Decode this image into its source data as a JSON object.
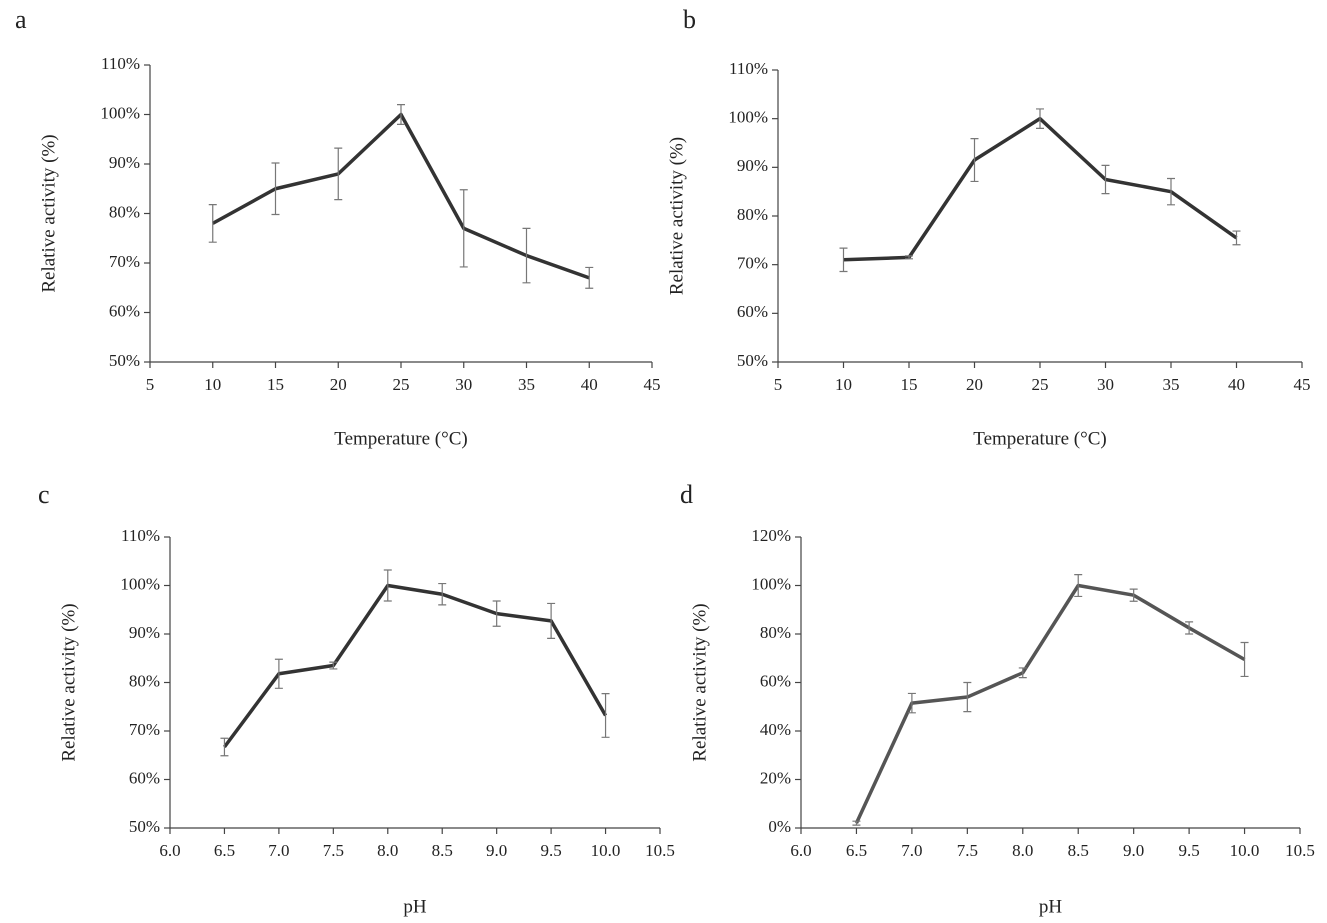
{
  "chart_data": [
    {
      "type": "line",
      "panel": "a",
      "x_label": "Temperature (°C)",
      "y_label": "Relative activity (%)",
      "color": "#333333",
      "x": [
        10,
        15,
        20,
        25,
        30,
        35,
        40
      ],
      "values": [
        78,
        85,
        88,
        100,
        77,
        71.5,
        67
      ],
      "errors": [
        3.8,
        5.2,
        5.2,
        2,
        7.8,
        5.5,
        2.1
      ],
      "xlim": [
        5,
        45
      ],
      "xticks": [
        5,
        10,
        15,
        20,
        25,
        30,
        35,
        40,
        45
      ],
      "ylim": [
        50,
        110
      ],
      "yticks": [
        {
          "value": 50,
          "label": "50%"
        },
        {
          "value": 60,
          "label": "60%"
        },
        {
          "value": 70,
          "label": "70%"
        },
        {
          "value": 80,
          "label": "80%"
        },
        {
          "value": 90,
          "label": "90%"
        },
        {
          "value": 100,
          "label": "100%"
        },
        {
          "value": 110,
          "label": "110%"
        }
      ]
    },
    {
      "type": "line",
      "panel": "b",
      "x_label": "Temperature (°C)",
      "y_label": "Relative activity (%)",
      "color": "#333333",
      "x": [
        10,
        15,
        20,
        25,
        30,
        35,
        40
      ],
      "values": [
        71,
        71.5,
        91.5,
        100,
        87.5,
        85,
        75.5
      ],
      "errors": [
        2.4,
        0.3,
        4.4,
        2,
        2.9,
        2.7,
        1.4
      ],
      "xlim": [
        5,
        45
      ],
      "xticks": [
        5,
        10,
        15,
        20,
        25,
        30,
        35,
        40,
        45
      ],
      "ylim": [
        50,
        110
      ],
      "yticks": [
        {
          "value": 50,
          "label": "50%"
        },
        {
          "value": 60,
          "label": "60%"
        },
        {
          "value": 70,
          "label": "70%"
        },
        {
          "value": 80,
          "label": "80%"
        },
        {
          "value": 90,
          "label": "90%"
        },
        {
          "value": 100,
          "label": "100%"
        },
        {
          "value": 110,
          "label": "110%"
        }
      ]
    },
    {
      "type": "line",
      "panel": "c",
      "x_label": "pH",
      "y_label": "Relative activity (%)",
      "color": "#333333",
      "x": [
        6.5,
        7,
        7.5,
        8,
        8.5,
        9,
        9.5,
        10
      ],
      "values": [
        66.7,
        81.8,
        83.5,
        100,
        98.2,
        94.2,
        92.7,
        73.2
      ],
      "errors": [
        1.8,
        3,
        0.7,
        3.2,
        2.2,
        2.6,
        3.6,
        4.5
      ],
      "xlim": [
        6,
        10.5
      ],
      "xticks": [
        {
          "value": 6,
          "label": "6.0"
        },
        6.5,
        {
          "value": 7,
          "label": "7.0"
        },
        7.5,
        {
          "value": 8,
          "label": "8.0"
        },
        8.5,
        {
          "value": 9,
          "label": "9.0"
        },
        9.5,
        {
          "value": 10,
          "label": "10.0"
        },
        10.5
      ],
      "ylim": [
        50,
        110
      ],
      "yticks": [
        {
          "value": 50,
          "label": "50%"
        },
        {
          "value": 60,
          "label": "60%"
        },
        {
          "value": 70,
          "label": "70%"
        },
        {
          "value": 80,
          "label": "80%"
        },
        {
          "value": 90,
          "label": "90%"
        },
        {
          "value": 100,
          "label": "100%"
        },
        {
          "value": 110,
          "label": "110%"
        }
      ]
    },
    {
      "type": "line",
      "panel": "d",
      "x_label": "pH",
      "y_label": "Relative activity (%)",
      "color": "#555555",
      "x": [
        6.5,
        7,
        7.5,
        8,
        8.5,
        9,
        9.5,
        10
      ],
      "values": [
        2,
        51.5,
        54,
        64,
        100,
        96,
        82.5,
        69.5
      ],
      "errors": [
        0.8,
        4,
        6,
        2,
        4.5,
        2.5,
        2.5,
        7
      ],
      "xlim": [
        6,
        10.5
      ],
      "xticks": [
        {
          "value": 6,
          "label": "6.0"
        },
        6.5,
        {
          "value": 7,
          "label": "7.0"
        },
        7.5,
        {
          "value": 8,
          "label": "8.0"
        },
        8.5,
        {
          "value": 9,
          "label": "9.0"
        },
        9.5,
        {
          "value": 10,
          "label": "10.0"
        },
        10.5
      ],
      "ylim": [
        0,
        120
      ],
      "yticks": [
        {
          "value": 0,
          "label": "0%"
        },
        {
          "value": 20,
          "label": "20%"
        },
        {
          "value": 40,
          "label": "40%"
        },
        {
          "value": 60,
          "label": "60%"
        },
        {
          "value": 80,
          "label": "80%"
        },
        {
          "value": 100,
          "label": "100%"
        },
        {
          "value": 120,
          "label": "120%"
        }
      ]
    }
  ]
}
